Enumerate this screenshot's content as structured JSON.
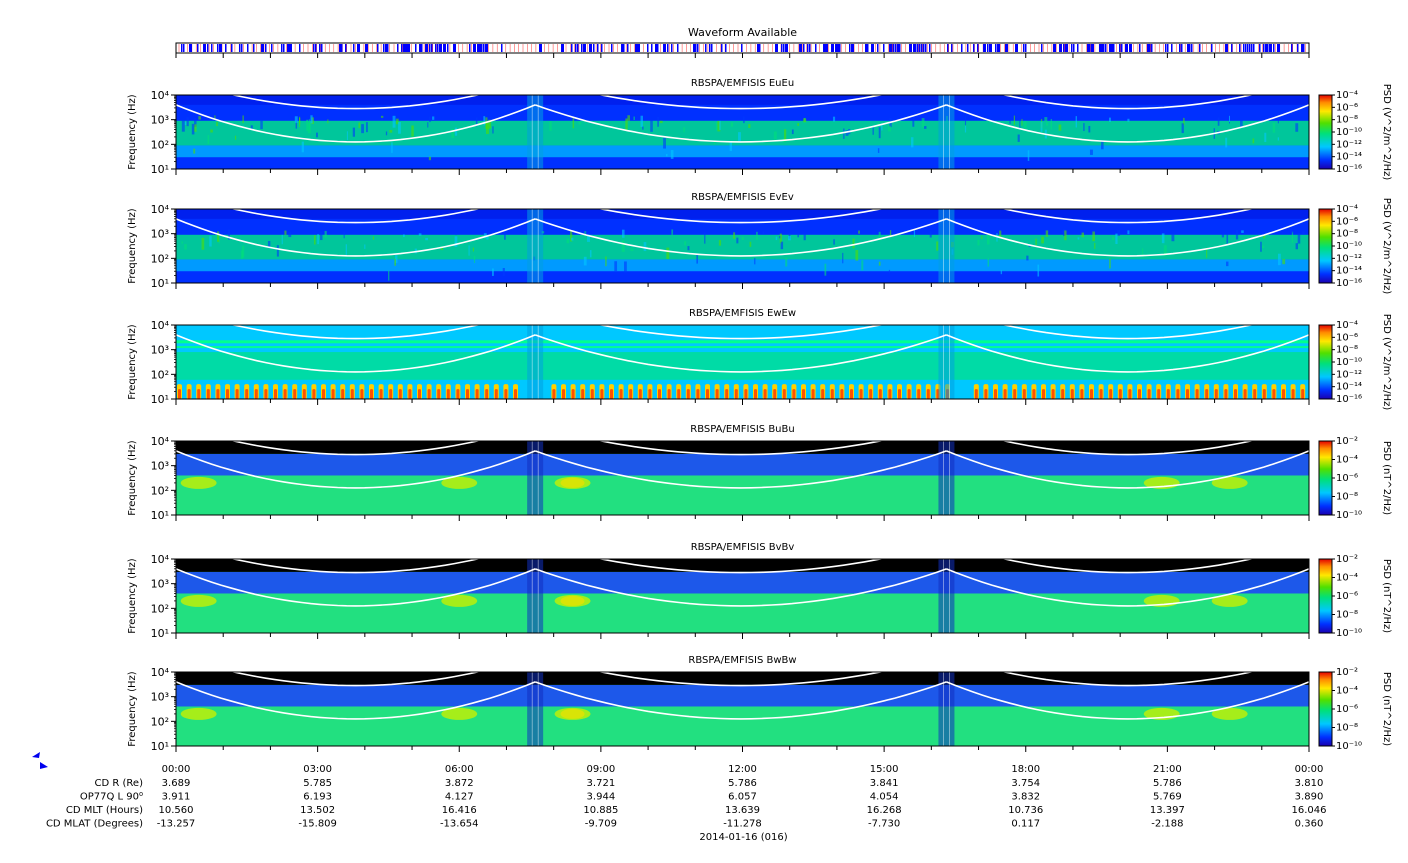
{
  "waveform": {
    "title": "Waveform Available"
  },
  "panels": [
    {
      "title": "RBSPA/EMFISIS  EuEu",
      "ylabel": "Frequency (Hz)",
      "yticks": [
        "10⁴",
        "10³",
        "10²",
        "10¹"
      ],
      "cbar_label": "PSD (V^2/m^2/Hz)",
      "cbar_ticks": [
        "10⁻⁴",
        "10⁻⁶",
        "10⁻⁸",
        "10⁻¹⁰",
        "10⁻¹²",
        "10⁻¹⁴",
        "10⁻¹⁶"
      ],
      "background": "electric-noise"
    },
    {
      "title": "RBSPA/EMFISIS  EvEv",
      "ylabel": "Frequency (Hz)",
      "yticks": [
        "10⁴",
        "10³",
        "10²",
        "10¹"
      ],
      "cbar_label": "PSD (V^2/m^2/Hz)",
      "cbar_ticks": [
        "10⁻⁴",
        "10⁻⁶",
        "10⁻⁸",
        "10⁻¹⁰",
        "10⁻¹²",
        "10⁻¹⁴",
        "10⁻¹⁶"
      ],
      "background": "electric-noise"
    },
    {
      "title": "RBSPA/EMFISIS  EwEw",
      "ylabel": "Frequency (Hz)",
      "yticks": [
        "10⁴",
        "10³",
        "10²",
        "10¹"
      ],
      "cbar_label": "PSD (V^2/m^2/Hz)",
      "cbar_ticks": [
        "10⁻⁴",
        "10⁻⁶",
        "10⁻⁸",
        "10⁻¹⁰",
        "10⁻¹²",
        "10⁻¹⁴",
        "10⁻¹⁶"
      ],
      "background": "spin-tone"
    },
    {
      "title": "RBSPA/EMFISIS  BuBu",
      "ylabel": "Frequency (Hz)",
      "yticks": [
        "10⁴",
        "10³",
        "10²",
        "10¹"
      ],
      "cbar_label": "PSD (nT^2/Hz)",
      "cbar_ticks": [
        "10⁻²",
        "10⁻⁴",
        "10⁻⁶",
        "10⁻⁸",
        "10⁻¹⁰"
      ],
      "background": "magnetic"
    },
    {
      "title": "RBSPA/EMFISIS  BvBv",
      "ylabel": "Frequency (Hz)",
      "yticks": [
        "10⁴",
        "10³",
        "10²",
        "10¹"
      ],
      "cbar_label": "PSD (nT^2/Hz)",
      "cbar_ticks": [
        "10⁻²",
        "10⁻⁴",
        "10⁻⁶",
        "10⁻⁸",
        "10⁻¹⁰"
      ],
      "background": "magnetic"
    },
    {
      "title": "RBSPA/EMFISIS  BwBw",
      "ylabel": "Frequency (Hz)",
      "yticks": [
        "10⁴",
        "10³",
        "10²",
        "10¹"
      ],
      "cbar_label": "PSD (nT^2/Hz)",
      "cbar_ticks": [
        "10⁻²",
        "10⁻⁴",
        "10⁻⁶",
        "10⁻⁸",
        "10⁻¹⁰"
      ],
      "background": "magnetic"
    }
  ],
  "xaxis": {
    "ticks": [
      "00:00",
      "03:00",
      "06:00",
      "09:00",
      "12:00",
      "15:00",
      "18:00",
      "21:00",
      "00:00"
    ],
    "date_label": "2014-01-16 (016)"
  },
  "ephemeris": {
    "rows": [
      {
        "label": "CD R (Re)",
        "values": [
          "3.689",
          "5.785",
          "3.872",
          "3.721",
          "5.786",
          "3.841",
          "3.754",
          "5.786",
          "3.810"
        ]
      },
      {
        "label": "OP77Q L 90⁰",
        "values": [
          "3.911",
          "6.193",
          "4.127",
          "3.944",
          "6.057",
          "4.054",
          "3.832",
          "5.769",
          "3.890"
        ]
      },
      {
        "label": "CD MLT (Hours)",
        "values": [
          "10.560",
          "13.502",
          "16.416",
          "10.885",
          "13.639",
          "16.268",
          "10.736",
          "13.397",
          "16.046"
        ]
      },
      {
        "label": "CD MLAT (Degrees)",
        "values": [
          "-13.257",
          "-15.809",
          "-13.654",
          "-9.709",
          "-11.278",
          "-7.730",
          "0.117",
          "-2.188",
          "0.360"
        ]
      }
    ]
  },
  "colors": {
    "axis": "#000000",
    "curve": "#ffffff",
    "waveform_mark": "#0000ff",
    "waveform_grid": "#ff0000"
  },
  "chart_data": [
    {
      "type": "heatmap",
      "title": "RBSPA/EMFISIS  EuEu",
      "ylabel": "Frequency (Hz)",
      "yscale": "log",
      "ylim": [
        10,
        10000
      ],
      "xlim": [
        "00:00",
        "24:00"
      ],
      "colorbar": {
        "label": "PSD (V^2/m^2/Hz)",
        "range": [
          "1e-16",
          "1e-4"
        ]
      }
    },
    {
      "type": "heatmap",
      "title": "RBSPA/EMFISIS  EvEv",
      "ylabel": "Frequency (Hz)",
      "yscale": "log",
      "ylim": [
        10,
        10000
      ],
      "xlim": [
        "00:00",
        "24:00"
      ],
      "colorbar": {
        "label": "PSD (V^2/m^2/Hz)",
        "range": [
          "1e-16",
          "1e-4"
        ]
      }
    },
    {
      "type": "heatmap",
      "title": "RBSPA/EMFISIS  EwEw",
      "ylabel": "Frequency (Hz)",
      "yscale": "log",
      "ylim": [
        10,
        10000
      ],
      "xlim": [
        "00:00",
        "24:00"
      ],
      "colorbar": {
        "label": "PSD (V^2/m^2/Hz)",
        "range": [
          "1e-16",
          "1e-4"
        ]
      }
    },
    {
      "type": "heatmap",
      "title": "RBSPA/EMFISIS  BuBu",
      "ylabel": "Frequency (Hz)",
      "yscale": "log",
      "ylim": [
        10,
        10000
      ],
      "xlim": [
        "00:00",
        "24:00"
      ],
      "colorbar": {
        "label": "PSD (nT^2/Hz)",
        "range": [
          "1e-10",
          "1e-2"
        ]
      }
    },
    {
      "type": "heatmap",
      "title": "RBSPA/EMFISIS  BvBv",
      "ylabel": "Frequency (Hz)",
      "yscale": "log",
      "ylim": [
        10,
        10000
      ],
      "xlim": [
        "00:00",
        "24:00"
      ],
      "colorbar": {
        "label": "PSD (nT^2/Hz)",
        "range": [
          "1e-10",
          "1e-2"
        ]
      }
    },
    {
      "type": "heatmap",
      "title": "RBSPA/EMFISIS  BwBw",
      "ylabel": "Frequency (Hz)",
      "yscale": "log",
      "ylim": [
        10,
        10000
      ],
      "xlim": [
        "00:00",
        "24:00"
      ],
      "colorbar": {
        "label": "PSD (nT^2/Hz)",
        "range": [
          "1e-10",
          "1e-2"
        ]
      }
    }
  ]
}
